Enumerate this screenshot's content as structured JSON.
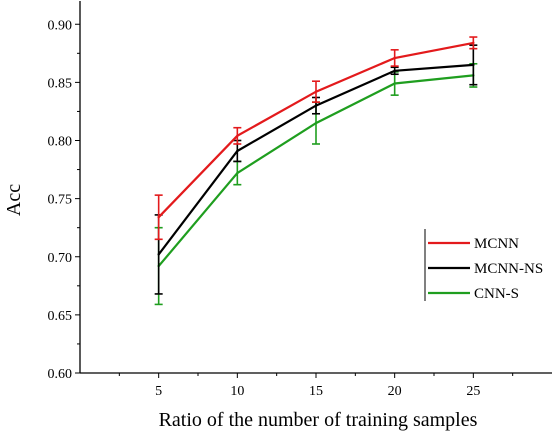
{
  "chart_data": {
    "type": "line",
    "xlabel": "Ratio of the number of training samples",
    "ylabel": "Acc",
    "x": [
      5,
      10,
      15,
      20,
      25
    ],
    "xlim": [
      0,
      30
    ],
    "ylim": [
      0.6,
      0.92
    ],
    "xticks": [
      "5",
      "10",
      "15",
      "20",
      "25"
    ],
    "yticks": [
      "0.60",
      "0.65",
      "0.70",
      "0.75",
      "0.80",
      "0.85",
      "0.90"
    ],
    "grid": false,
    "legend_position": "right",
    "series": [
      {
        "name": "MCNN",
        "color": "#e31a1c",
        "values": [
          0.734,
          0.804,
          0.842,
          0.871,
          0.884
        ],
        "errors": [
          0.019,
          0.007,
          0.009,
          0.007,
          0.005
        ]
      },
      {
        "name": "MCNN-NS",
        "color": "#000000",
        "values": [
          0.702,
          0.791,
          0.83,
          0.86,
          0.865
        ],
        "errors": [
          0.034,
          0.009,
          0.007,
          0.003,
          0.017
        ]
      },
      {
        "name": "CNN-S",
        "color": "#1f9e1f",
        "values": [
          0.692,
          0.772,
          0.815,
          0.849,
          0.856
        ],
        "errors": [
          0.033,
          0.01,
          0.018,
          0.01,
          0.01
        ]
      }
    ]
  }
}
